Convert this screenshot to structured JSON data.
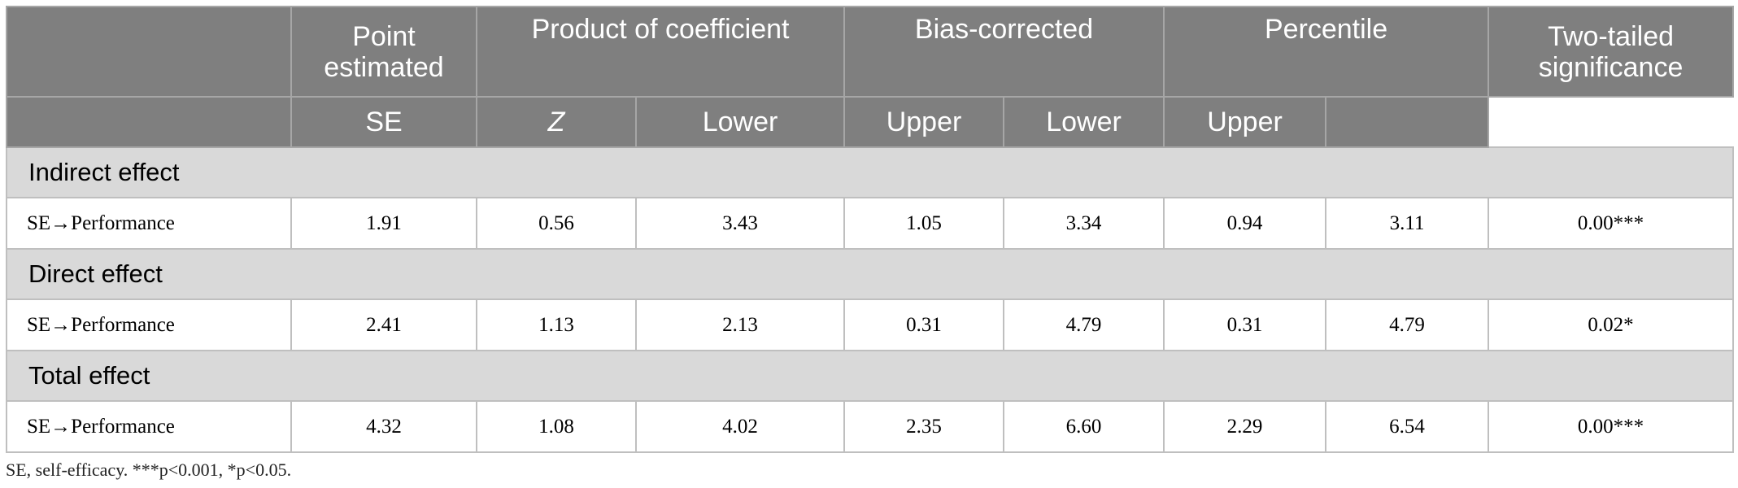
{
  "table": {
    "header_top": [
      "Point estimated",
      "Product of coefficient",
      "Bias-corrected",
      "Percentile",
      "Two-tailed significance"
    ],
    "header_sub": [
      "SE",
      "Z",
      "Lower",
      "Upper",
      "Lower",
      "Upper"
    ],
    "sections": [
      {
        "label": "Indirect effect",
        "rows": [
          {
            "label": "SE→Performance",
            "values": [
              "1.91",
              "0.56",
              "3.43",
              "1.05",
              "3.34",
              "0.94",
              "3.11",
              "0.00***"
            ]
          }
        ]
      },
      {
        "label": "Direct effect",
        "rows": [
          {
            "label": "SE→Performance",
            "values": [
              "2.41",
              "1.13",
              "2.13",
              "0.31",
              "4.79",
              "0.31",
              "4.79",
              "0.02*"
            ]
          }
        ]
      },
      {
        "label": "Total effect",
        "rows": [
          {
            "label": "SE→Performance",
            "values": [
              "4.32",
              "1.08",
              "4.02",
              "2.35",
              "6.60",
              "2.29",
              "6.54",
              "0.00***"
            ]
          }
        ]
      }
    ]
  },
  "footnote": "SE, self-efficacy. ***p<0.001, *p<0.05."
}
